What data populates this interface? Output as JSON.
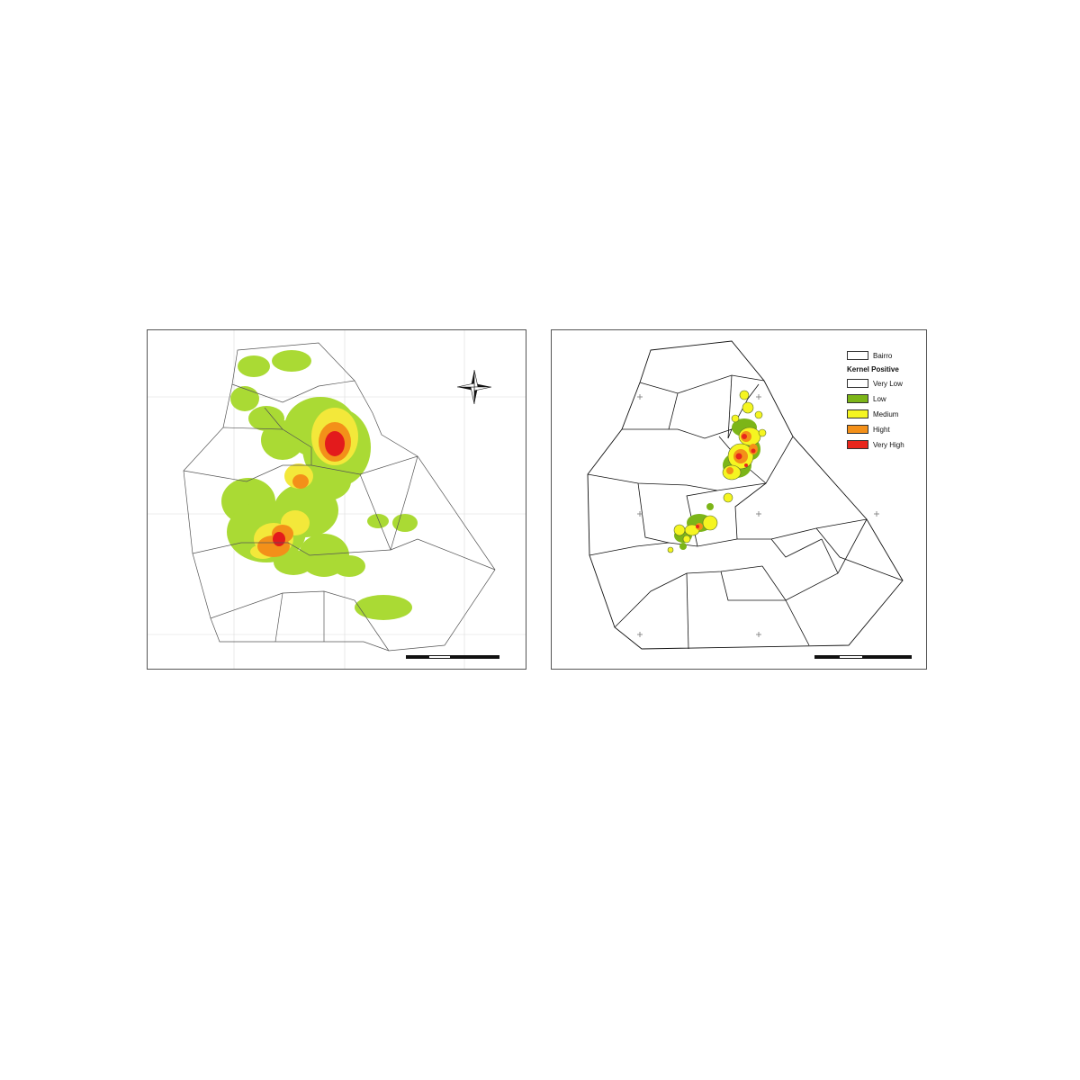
{
  "figure": {
    "panel_a": {
      "letter": "",
      "neighborhoods": [],
      "coords_top": [
        "",
        "",
        ""
      ],
      "coords_bottom": [
        "",
        "",
        ""
      ],
      "coords_left": [
        "",
        "",
        ""
      ],
      "coords_right": [
        "",
        "",
        ""
      ],
      "compass": {
        "n": "",
        "s": "",
        "e": "",
        "w": ""
      },
      "scale": {
        "ticks": [
          "",
          "",
          "",
          ""
        ],
        "unit": ""
      }
    },
    "panel_b": {
      "letter": "",
      "neighborhoods": [],
      "coords_top": [
        "",
        "",
        ""
      ],
      "coords_bottom": [
        "",
        "",
        ""
      ],
      "coords_left": [
        "",
        "",
        ""
      ],
      "coords_right": [
        "",
        "",
        ""
      ],
      "scale": {
        "ticks": [
          "",
          "",
          "",
          ""
        ],
        "unit": ""
      },
      "legend": {
        "title": "",
        "boundary_label": "Bairro",
        "kernel_title": "Kernel Positive",
        "classes": [
          {
            "label": "Very Low",
            "color": "#ffffff"
          },
          {
            "label": "Low",
            "color": "#7cb518"
          },
          {
            "label": "Medium",
            "color": "#f5f521"
          },
          {
            "label": "Hight",
            "color": "#f39019"
          },
          {
            "label": "Very High",
            "color": "#e8261c"
          }
        ]
      }
    },
    "colors": {
      "low": "#a6d92a",
      "medium": "#f3e83a",
      "high": "#f39019",
      "very_high": "#e31a1c",
      "boundary": "#222222"
    }
  },
  "caption": {
    "lead": "",
    "text": ""
  }
}
